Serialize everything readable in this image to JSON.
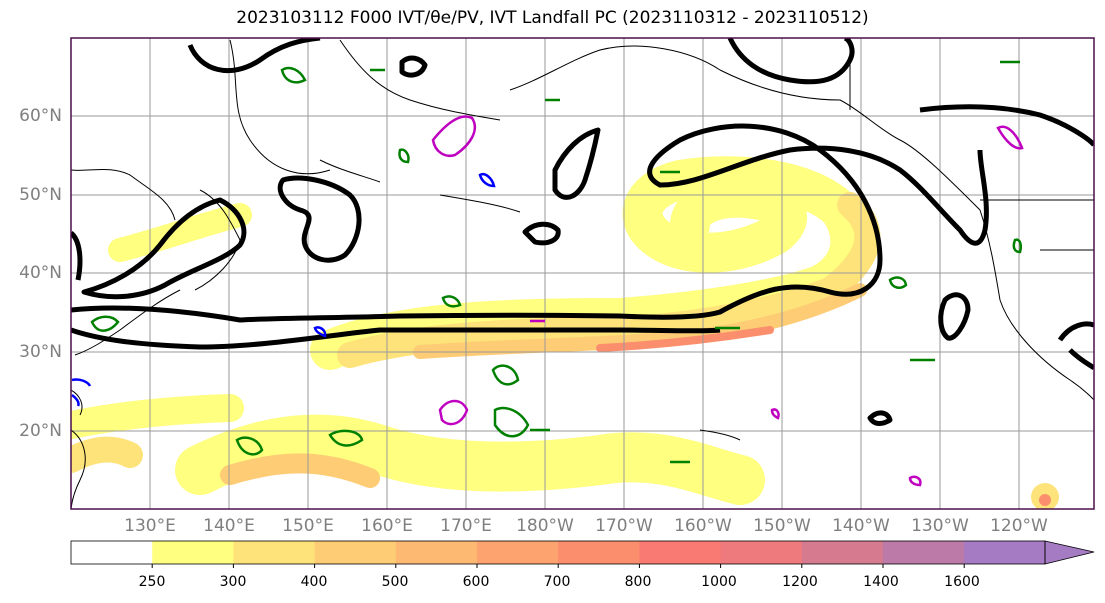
{
  "title": "2023103112 F000 IVT/θe/PV, IVT Landfall PC (2023110312 - 2023110512)",
  "map": {
    "lat_labels": [
      "60°N",
      "50°N",
      "40°N",
      "30°N",
      "20°N"
    ],
    "lon_labels": [
      "130°E",
      "140°E",
      "150°E",
      "160°E",
      "170°E",
      "180°W",
      "170°W",
      "160°W",
      "150°W",
      "140°W",
      "130°W",
      "120°W"
    ]
  },
  "colorbar": {
    "labels": [
      "250",
      "300",
      "400",
      "500",
      "600",
      "700",
      "800",
      "1000",
      "1200",
      "1400",
      "1600"
    ],
    "colors": [
      "#ffffff",
      "#ffff80",
      "#fde37a",
      "#fdcc74",
      "#fdb872",
      "#fca36f",
      "#fb8e6d",
      "#f97a72",
      "#ee7a7e",
      "#d67a8f",
      "#bb7aa7",
      "#a57bc4"
    ]
  }
}
